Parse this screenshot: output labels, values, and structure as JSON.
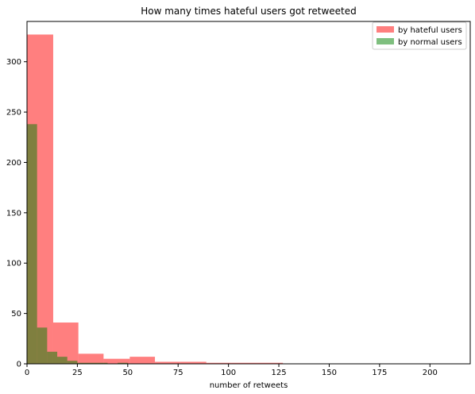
{
  "chart_data": {
    "type": "histogram",
    "title": "How many times hateful users got retweeted",
    "xlabel": "number of retweets",
    "ylabel": "",
    "xlim": [
      0,
      220
    ],
    "ylim": [
      0,
      340
    ],
    "xticks": [
      0,
      25,
      50,
      75,
      100,
      125,
      150,
      175,
      200
    ],
    "yticks": [
      0,
      50,
      100,
      150,
      200,
      250,
      300
    ],
    "legend_position": "top-right",
    "grid": false,
    "series": [
      {
        "name": "by hateful users",
        "color": "#ff0000",
        "opacity": 0.5,
        "bins": [
          {
            "x0": 0,
            "x1": 13,
            "value": 327
          },
          {
            "x0": 13,
            "x1": 25.5,
            "value": 41
          },
          {
            "x0": 25.5,
            "x1": 38,
            "value": 10
          },
          {
            "x0": 38,
            "x1": 51,
            "value": 5
          },
          {
            "x0": 51,
            "x1": 63.5,
            "value": 7
          },
          {
            "x0": 63.5,
            "x1": 76,
            "value": 2
          },
          {
            "x0": 76,
            "x1": 89,
            "value": 2
          },
          {
            "x0": 89,
            "x1": 101.5,
            "value": 1
          },
          {
            "x0": 101.5,
            "x1": 114,
            "value": 1
          },
          {
            "x0": 114,
            "x1": 127,
            "value": 1
          }
        ]
      },
      {
        "name": "by normal users",
        "color": "#008000",
        "opacity": 0.5,
        "bins": [
          {
            "x0": 0,
            "x1": 5,
            "value": 238
          },
          {
            "x0": 5,
            "x1": 10,
            "value": 36
          },
          {
            "x0": 10,
            "x1": 15,
            "value": 12
          },
          {
            "x0": 15,
            "x1": 20,
            "value": 7
          },
          {
            "x0": 20,
            "x1": 25,
            "value": 3
          },
          {
            "x0": 25,
            "x1": 30,
            "value": 1
          },
          {
            "x0": 30,
            "x1": 35,
            "value": 1
          },
          {
            "x0": 35,
            "x1": 40,
            "value": 1
          },
          {
            "x0": 45,
            "x1": 50,
            "value": 1
          }
        ]
      }
    ]
  }
}
